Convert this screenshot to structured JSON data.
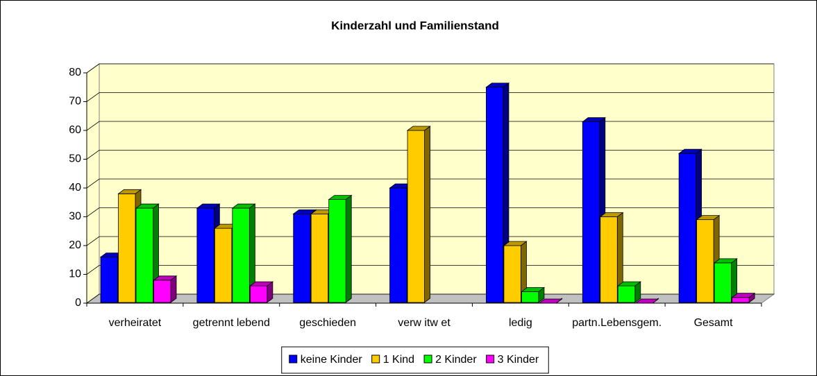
{
  "chart_data": {
    "type": "bar3d",
    "title": "Kinderzahl und Familienstand",
    "categories": [
      "verheiratet",
      "getrennt lebend",
      "geschieden",
      "verw itw et",
      "ledig",
      "partn.Lebensgem.",
      "Gesamt"
    ],
    "series": [
      {
        "name": "keine Kinder",
        "color": "#0000ff",
        "values": [
          16,
          33,
          31,
          40,
          75,
          63,
          52
        ]
      },
      {
        "name": "1 Kind",
        "color": "#ffcc00",
        "values": [
          38,
          26,
          31,
          60,
          20,
          30,
          29
        ]
      },
      {
        "name": "2 Kinder",
        "color": "#00ff00",
        "values": [
          33,
          33,
          36,
          null,
          4,
          6,
          14
        ]
      },
      {
        "name": "3 Kinder",
        "color": "#ff00ff",
        "values": [
          8,
          6,
          null,
          null,
          0,
          0,
          2
        ]
      }
    ],
    "ylim": [
      0,
      80
    ],
    "yticks": [
      0,
      10,
      20,
      30,
      40,
      50,
      60,
      70,
      80
    ],
    "grid": true,
    "wall_color": "#ffffcc",
    "legend": "bottom"
  }
}
